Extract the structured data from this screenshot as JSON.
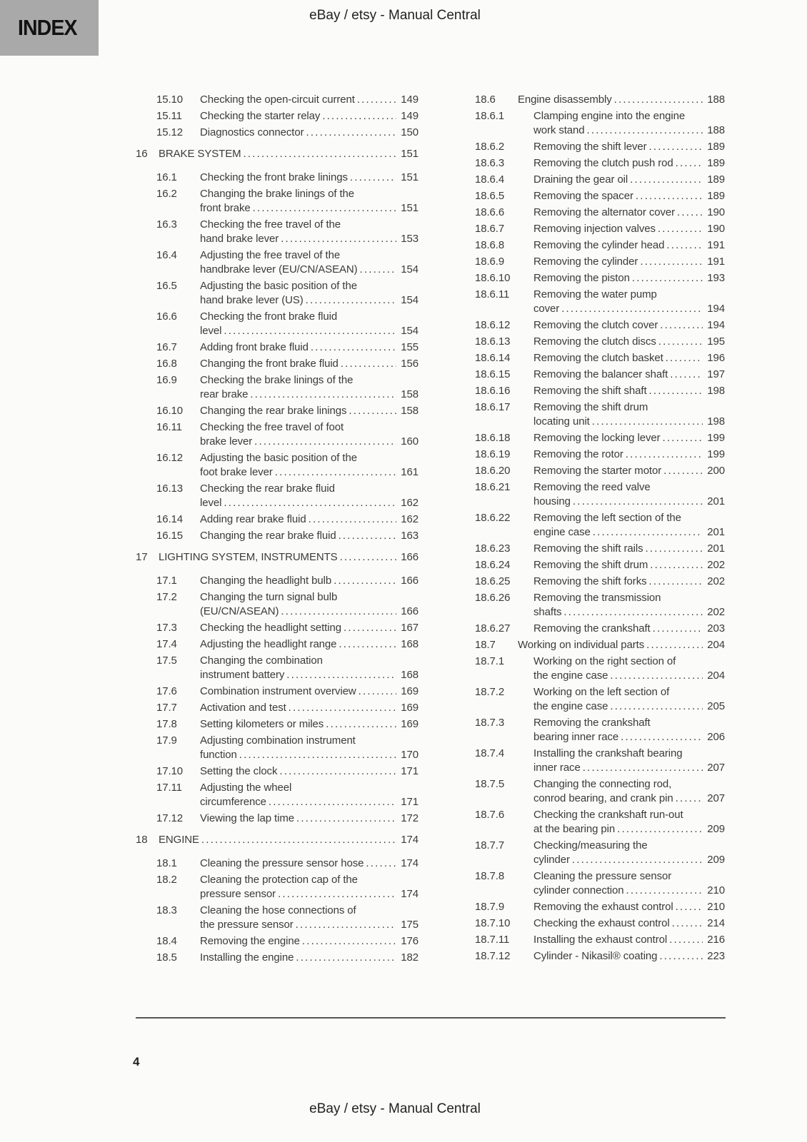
{
  "page": {
    "index_label": "INDEX",
    "header_title": "eBay / etsy - Manual Central",
    "footer_title": "eBay / etsy - Manual Central",
    "page_number": "4"
  },
  "toc": {
    "columns": [
      {
        "entries": [
          {
            "level": "l2",
            "num": "15.10",
            "lines": [
              "Checking the open-circuit current"
            ],
            "page": "149"
          },
          {
            "level": "l2",
            "num": "15.11",
            "lines": [
              "Checking the starter relay"
            ],
            "page": "149"
          },
          {
            "level": "l2",
            "num": "15.12",
            "lines": [
              "Diagnostics connector"
            ],
            "page": "150"
          },
          {
            "level": "l1",
            "num": "16",
            "lines": [
              "BRAKE SYSTEM"
            ],
            "page": "151"
          },
          {
            "level": "l2",
            "num": "16.1",
            "lines": [
              "Checking the front brake linings"
            ],
            "page": "151"
          },
          {
            "level": "l2",
            "num": "16.2",
            "lines": [
              "Changing the brake linings of the",
              "front brake"
            ],
            "page": "151"
          },
          {
            "level": "l2",
            "num": "16.3",
            "lines": [
              "Checking the free travel of the",
              "hand brake lever"
            ],
            "page": "153"
          },
          {
            "level": "l2",
            "num": "16.4",
            "lines": [
              "Adjusting the free travel of the",
              "handbrake lever (EU/CN/ASEAN)"
            ],
            "page": "154"
          },
          {
            "level": "l2",
            "num": "16.5",
            "lines": [
              "Adjusting the basic position of the",
              "hand brake lever (US)"
            ],
            "page": "154"
          },
          {
            "level": "l2",
            "num": "16.6",
            "lines": [
              "Checking the front brake fluid",
              "level"
            ],
            "page": "154"
          },
          {
            "level": "l2",
            "num": "16.7",
            "lines": [
              "Adding front brake fluid"
            ],
            "page": "155"
          },
          {
            "level": "l2",
            "num": "16.8",
            "lines": [
              "Changing the front brake fluid"
            ],
            "page": "156"
          },
          {
            "level": "l2",
            "num": "16.9",
            "lines": [
              "Checking the brake linings of the",
              "rear brake"
            ],
            "page": "158"
          },
          {
            "level": "l2",
            "num": "16.10",
            "lines": [
              "Changing the rear brake linings"
            ],
            "page": "158"
          },
          {
            "level": "l2",
            "num": "16.11",
            "lines": [
              "Checking the free travel of foot",
              "brake lever"
            ],
            "page": "160"
          },
          {
            "level": "l2",
            "num": "16.12",
            "lines": [
              "Adjusting the basic position of the",
              "foot brake lever"
            ],
            "page": "161"
          },
          {
            "level": "l2",
            "num": "16.13",
            "lines": [
              "Checking the rear brake fluid",
              "level"
            ],
            "page": "162"
          },
          {
            "level": "l2",
            "num": "16.14",
            "lines": [
              "Adding rear brake fluid"
            ],
            "page": "162"
          },
          {
            "level": "l2",
            "num": "16.15",
            "lines": [
              "Changing the rear brake fluid"
            ],
            "page": "163"
          },
          {
            "level": "l1",
            "num": "17",
            "lines": [
              "LIGHTING SYSTEM, INSTRUMENTS"
            ],
            "page": "166"
          },
          {
            "level": "l2",
            "num": "17.1",
            "lines": [
              "Changing the headlight bulb"
            ],
            "page": "166"
          },
          {
            "level": "l2",
            "num": "17.2",
            "lines": [
              "Changing the turn signal bulb",
              "(EU/CN/ASEAN)"
            ],
            "page": "166"
          },
          {
            "level": "l2",
            "num": "17.3",
            "lines": [
              "Checking the headlight setting"
            ],
            "page": "167"
          },
          {
            "level": "l2",
            "num": "17.4",
            "lines": [
              "Adjusting the headlight range"
            ],
            "page": "168"
          },
          {
            "level": "l2",
            "num": "17.5",
            "lines": [
              "Changing the combination",
              "instrument battery"
            ],
            "page": "168"
          },
          {
            "level": "l2",
            "num": "17.6",
            "lines": [
              "Combination instrument overview"
            ],
            "page": "169"
          },
          {
            "level": "l2",
            "num": "17.7",
            "lines": [
              "Activation and test"
            ],
            "page": "169"
          },
          {
            "level": "l2",
            "num": "17.8",
            "lines": [
              "Setting kilometers or miles"
            ],
            "page": "169"
          },
          {
            "level": "l2",
            "num": "17.9",
            "lines": [
              "Adjusting combination instrument",
              "function"
            ],
            "page": "170"
          },
          {
            "level": "l2",
            "num": "17.10",
            "lines": [
              "Setting the clock"
            ],
            "page": "171"
          },
          {
            "level": "l2",
            "num": "17.11",
            "lines": [
              "Adjusting the wheel",
              "circumference"
            ],
            "page": "171"
          },
          {
            "level": "l2",
            "num": "17.12",
            "lines": [
              "Viewing the lap time"
            ],
            "page": "172"
          },
          {
            "level": "l1",
            "num": "18",
            "lines": [
              "ENGINE"
            ],
            "page": "174"
          },
          {
            "level": "l2",
            "num": "18.1",
            "lines": [
              "Cleaning the pressure sensor hose"
            ],
            "page": "174"
          },
          {
            "level": "l2",
            "num": "18.2",
            "lines": [
              "Cleaning the protection cap of the",
              "pressure sensor"
            ],
            "page": "174"
          },
          {
            "level": "l2",
            "num": "18.3",
            "lines": [
              "Cleaning the hose connections of",
              "the pressure sensor"
            ],
            "page": "175"
          },
          {
            "level": "l2",
            "num": "18.4",
            "lines": [
              "Removing the engine"
            ],
            "page": "176"
          },
          {
            "level": "l2",
            "num": "18.5",
            "lines": [
              "Installing the engine"
            ],
            "page": "182"
          }
        ]
      },
      {
        "entries": [
          {
            "level": "l2",
            "num": "18.6",
            "lines": [
              "Engine disassembly"
            ],
            "page": "188"
          },
          {
            "level": "l3",
            "num": "18.6.1",
            "lines": [
              "Clamping engine into the engine",
              "work stand"
            ],
            "page": "188"
          },
          {
            "level": "l3",
            "num": "18.6.2",
            "lines": [
              "Removing the shift lever"
            ],
            "page": "189"
          },
          {
            "level": "l3",
            "num": "18.6.3",
            "lines": [
              "Removing the clutch push rod"
            ],
            "page": "189"
          },
          {
            "level": "l3",
            "num": "18.6.4",
            "lines": [
              "Draining the gear oil"
            ],
            "page": "189"
          },
          {
            "level": "l3",
            "num": "18.6.5",
            "lines": [
              "Removing the spacer"
            ],
            "page": "189"
          },
          {
            "level": "l3",
            "num": "18.6.6",
            "lines": [
              "Removing the alternator cover"
            ],
            "page": "190"
          },
          {
            "level": "l3",
            "num": "18.6.7",
            "lines": [
              "Removing injection valves"
            ],
            "page": "190"
          },
          {
            "level": "l3",
            "num": "18.6.8",
            "lines": [
              "Removing the cylinder head"
            ],
            "page": "191"
          },
          {
            "level": "l3",
            "num": "18.6.9",
            "lines": [
              "Removing the cylinder"
            ],
            "page": "191"
          },
          {
            "level": "l3",
            "num": "18.6.10",
            "lines": [
              "Removing the piston"
            ],
            "page": "193"
          },
          {
            "level": "l3",
            "num": "18.6.11",
            "lines": [
              "Removing the water pump",
              "cover"
            ],
            "page": "194"
          },
          {
            "level": "l3",
            "num": "18.6.12",
            "lines": [
              "Removing the clutch cover"
            ],
            "page": "194"
          },
          {
            "level": "l3",
            "num": "18.6.13",
            "lines": [
              "Removing the clutch discs"
            ],
            "page": "195"
          },
          {
            "level": "l3",
            "num": "18.6.14",
            "lines": [
              "Removing the clutch basket"
            ],
            "page": "196"
          },
          {
            "level": "l3",
            "num": "18.6.15",
            "lines": [
              "Removing the balancer shaft"
            ],
            "page": "197"
          },
          {
            "level": "l3",
            "num": "18.6.16",
            "lines": [
              "Removing the shift shaft"
            ],
            "page": "198"
          },
          {
            "level": "l3",
            "num": "18.6.17",
            "lines": [
              "Removing the shift drum",
              "locating unit"
            ],
            "page": "198"
          },
          {
            "level": "l3",
            "num": "18.6.18",
            "lines": [
              "Removing the locking lever"
            ],
            "page": "199"
          },
          {
            "level": "l3",
            "num": "18.6.19",
            "lines": [
              "Removing the rotor"
            ],
            "page": "199"
          },
          {
            "level": "l3",
            "num": "18.6.20",
            "lines": [
              "Removing the starter motor"
            ],
            "page": "200"
          },
          {
            "level": "l3",
            "num": "18.6.21",
            "lines": [
              "Removing the reed valve",
              "housing"
            ],
            "page": "201"
          },
          {
            "level": "l3",
            "num": "18.6.22",
            "lines": [
              "Removing the left section of the",
              "engine case"
            ],
            "page": "201"
          },
          {
            "level": "l3",
            "num": "18.6.23",
            "lines": [
              "Removing the shift rails"
            ],
            "page": "201"
          },
          {
            "level": "l3",
            "num": "18.6.24",
            "lines": [
              "Removing the shift drum"
            ],
            "page": "202"
          },
          {
            "level": "l3",
            "num": "18.6.25",
            "lines": [
              "Removing the shift forks"
            ],
            "page": "202"
          },
          {
            "level": "l3",
            "num": "18.6.26",
            "lines": [
              "Removing the transmission",
              "shafts"
            ],
            "page": "202"
          },
          {
            "level": "l3",
            "num": "18.6.27",
            "lines": [
              "Removing the crankshaft"
            ],
            "page": "203"
          },
          {
            "level": "l2",
            "num": "18.7",
            "lines": [
              "Working on individual parts"
            ],
            "page": "204"
          },
          {
            "level": "l3",
            "num": "18.7.1",
            "lines": [
              "Working on the right section of",
              "the engine case"
            ],
            "page": "204"
          },
          {
            "level": "l3",
            "num": "18.7.2",
            "lines": [
              "Working on the left section of",
              "the engine case"
            ],
            "page": "205"
          },
          {
            "level": "l3",
            "num": "18.7.3",
            "lines": [
              "Removing the crankshaft",
              "bearing inner race"
            ],
            "page": "206"
          },
          {
            "level": "l3",
            "num": "18.7.4",
            "lines": [
              "Installing the crankshaft bearing",
              "inner race"
            ],
            "page": "207"
          },
          {
            "level": "l3",
            "num": "18.7.5",
            "lines": [
              "Changing the connecting rod,",
              "conrod bearing, and crank pin"
            ],
            "page": "207"
          },
          {
            "level": "l3",
            "num": "18.7.6",
            "lines": [
              "Checking the crankshaft run-out",
              "at the bearing pin"
            ],
            "page": "209"
          },
          {
            "level": "l3",
            "num": "18.7.7",
            "lines": [
              "Checking/measuring the",
              "cylinder"
            ],
            "page": "209"
          },
          {
            "level": "l3",
            "num": "18.7.8",
            "lines": [
              "Cleaning the pressure sensor",
              "cylinder connection"
            ],
            "page": "210"
          },
          {
            "level": "l3",
            "num": "18.7.9",
            "lines": [
              "Removing the exhaust control"
            ],
            "page": "210"
          },
          {
            "level": "l3",
            "num": "18.7.10",
            "lines": [
              "Checking the exhaust control"
            ],
            "page": "214"
          },
          {
            "level": "l3",
            "num": "18.7.11",
            "lines": [
              "Installing the exhaust control"
            ],
            "page": "216"
          },
          {
            "level": "l3",
            "num": "18.7.12",
            "lines": [
              "Cylinder - Nikasil® coating"
            ],
            "page": "223"
          }
        ]
      }
    ]
  }
}
